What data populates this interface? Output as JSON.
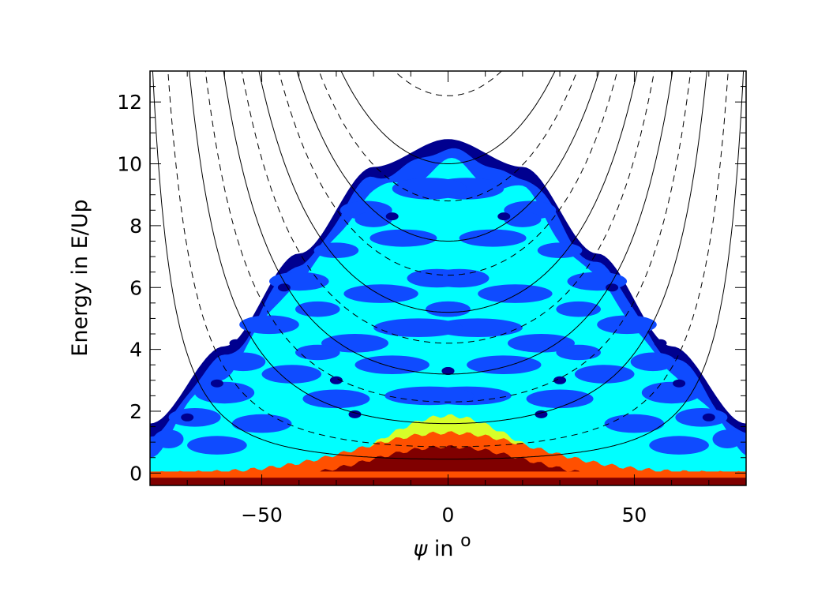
{
  "chart_data": {
    "type": "heatmap",
    "title": "",
    "xlabel_symbol": "ψ",
    "xlabel_text": " in ",
    "xlabel_unit": "o",
    "ylabel": "Energy in E/Up",
    "xlim": [
      -80,
      80
    ],
    "ylim": [
      -0.4,
      13
    ],
    "xticks": [
      -50,
      0,
      50
    ],
    "yticks": [
      0,
      2,
      4,
      6,
      8,
      10,
      12
    ],
    "x_tick_labels": [
      "−50",
      "0",
      "50"
    ],
    "y_tick_labels": [
      "0",
      "2",
      "4",
      "6",
      "8",
      "10",
      "12"
    ],
    "grid": false,
    "colors": {
      "level_1": "#00008f",
      "level_2": "#0f4bff",
      "level_3": "#00ffff",
      "level_4": "#d7ff29",
      "level_5": "#ff5000",
      "level_6": "#800000"
    },
    "envelope": {
      "psi": [
        -80,
        -60,
        -40,
        -20,
        0,
        20,
        40,
        60,
        80
      ],
      "max_energy": [
        1.6,
        4.1,
        7.1,
        9.9,
        10.8,
        9.9,
        7.1,
        4.1,
        1.6
      ]
    },
    "curves": {
      "solid_k": [
        0.45,
        1.6,
        3.2,
        5.2,
        7.5,
        10.0,
        14.5,
        20.0,
        28.0,
        40.0,
        60.0,
        95.0
      ],
      "dashed_k": [
        0.85,
        2.3,
        4.2,
        6.4,
        8.8,
        12.2,
        17.0,
        24.0,
        34.0,
        50.0,
        75.0
      ]
    }
  }
}
